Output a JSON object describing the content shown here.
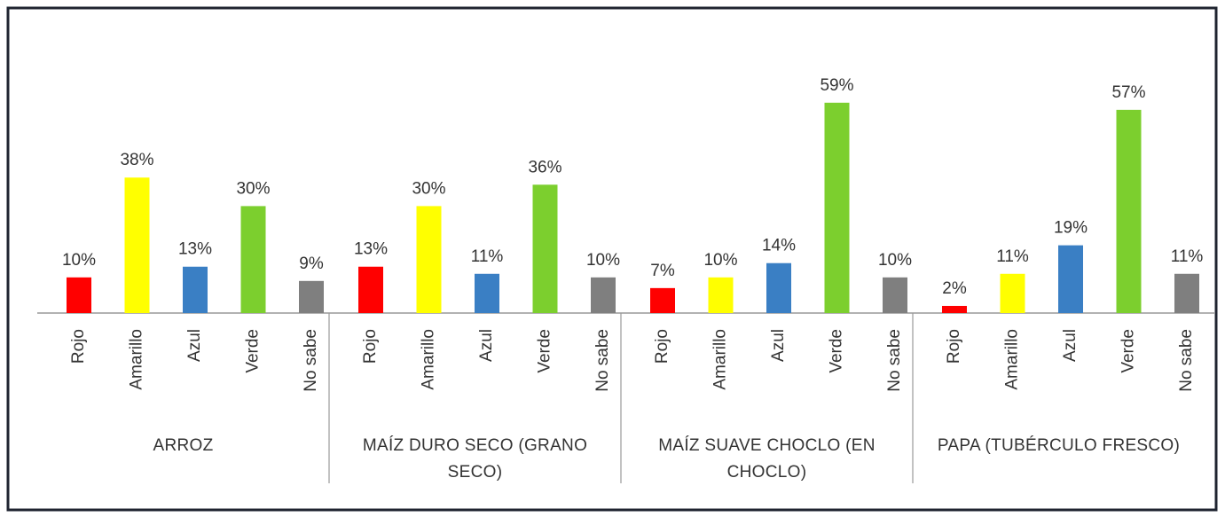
{
  "chart_data": {
    "type": "bar",
    "categories": [
      "ARROZ",
      "MAÍZ DURO SECO (GRANO SECO)",
      "MAÍZ SUAVE CHOCLO (EN CHOCLO)",
      "PAPA (TUBÉRCULO FRESCO)"
    ],
    "series": [
      {
        "name": "Rojo",
        "color": "#ff0000",
        "values": [
          10,
          13,
          7,
          2
        ],
        "value_labels": [
          "10%",
          "13%",
          "7%",
          "2%"
        ]
      },
      {
        "name": "Amarillo",
        "color": "#ffff00",
        "values": [
          38,
          30,
          10,
          11
        ],
        "value_labels": [
          "38%",
          "30%",
          "10%",
          "11%"
        ]
      },
      {
        "name": "Azul",
        "color": "#3a7fc4",
        "values": [
          13,
          11,
          14,
          19
        ],
        "value_labels": [
          "13%",
          "11%",
          "14%",
          "19%"
        ]
      },
      {
        "name": "Verde",
        "color": "#7ccf2e",
        "values": [
          30,
          36,
          59,
          57
        ],
        "value_labels": [
          "30%",
          "36%",
          "59%",
          "57%"
        ]
      },
      {
        "name": "No sabe",
        "color": "#7f7f7f",
        "values": [
          9,
          10,
          10,
          11
        ],
        "value_labels": [
          "9%",
          "10%",
          "10%",
          "11%"
        ]
      }
    ]
  }
}
